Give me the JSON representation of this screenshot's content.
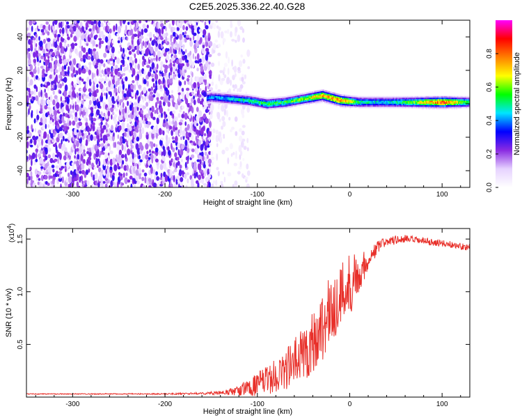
{
  "figure_title": "C2E5.2025.336.22.40.G28",
  "colors": {
    "snr_line": "#e8302a",
    "background": "#ffffff",
    "frame": "#000000",
    "colormap_stops": [
      "#ffffff",
      "#e6d2ff",
      "#8a2be2",
      "#0000ff",
      "#00e5ff",
      "#00ff00",
      "#ffff00",
      "#ff8000",
      "#ff0000",
      "#ff00ff"
    ]
  },
  "chart_data": [
    {
      "type": "heatmap",
      "title": "C2E5.2025.336.22.40.G28",
      "xlabel": "Height of straight line (km)",
      "ylabel": "Frequency (Hz)",
      "xlim": [
        -350,
        130
      ],
      "ylim": [
        -50,
        50
      ],
      "xticks": [
        -300,
        -200,
        -100,
        0,
        100
      ],
      "yticks": [
        -40,
        -20,
        0,
        20,
        40
      ],
      "colorbar": {
        "label": "Normalized spectral amplitude",
        "range": [
          0,
          1
        ],
        "ticks": [
          "0.0",
          "0.2",
          "0.4",
          "0.6",
          "0.8"
        ]
      },
      "regions": [
        {
          "name": "noise",
          "x_range": [
            -350,
            -150
          ],
          "freq_range": [
            -50,
            50
          ],
          "amplitude": [
            0.05,
            0.3
          ]
        },
        {
          "name": "transition",
          "x_range": [
            -150,
            -110
          ],
          "freq_range": [
            -50,
            50
          ],
          "amplitude": [
            0.02,
            0.1
          ]
        },
        {
          "name": "signal",
          "x_range": [
            -155,
            130
          ],
          "freq_center": 1,
          "freq_halfwidth": 4,
          "amplitude": [
            0.3,
            1.0
          ]
        }
      ],
      "ridge": [
        {
          "x": -185,
          "f": 1,
          "amp": 0.35
        },
        {
          "x": -150,
          "f": 4,
          "amp": 0.4
        },
        {
          "x": -130,
          "f": 3,
          "amp": 0.45
        },
        {
          "x": -110,
          "f": 2,
          "amp": 0.5
        },
        {
          "x": -90,
          "f": 0,
          "amp": 0.55
        },
        {
          "x": -70,
          "f": 1,
          "amp": 0.55
        },
        {
          "x": -50,
          "f": 3,
          "amp": 0.6
        },
        {
          "x": -30,
          "f": 5,
          "amp": 0.75
        },
        {
          "x": -10,
          "f": 2,
          "amp": 0.8
        },
        {
          "x": 10,
          "f": 1,
          "amp": 0.5
        },
        {
          "x": 40,
          "f": 1,
          "amp": 0.45
        },
        {
          "x": 70,
          "f": 1,
          "amp": 0.6
        },
        {
          "x": 100,
          "f": 1,
          "amp": 0.85
        },
        {
          "x": 130,
          "f": 1,
          "amp": 0.5
        }
      ]
    },
    {
      "type": "line",
      "xlabel": "Height of straight line (km)",
      "ylabel": "SNR (10 * v/v)",
      "y_multiplier": "(x10^4)",
      "y_multiplier_base": "(x10",
      "y_multiplier_exp": "4",
      "y_multiplier_close": ")",
      "xlim": [
        -350,
        130
      ],
      "ylim": [
        0,
        1.6
      ],
      "xticks": [
        -300,
        -200,
        -100,
        0,
        100
      ],
      "yticks": [
        0.5,
        1.0,
        1.5
      ],
      "yticklabels": [
        "0.5",
        "1.0",
        "1.5"
      ],
      "series": [
        {
          "name": "SNR",
          "x": [
            -350,
            -300,
            -250,
            -200,
            -160,
            -140,
            -120,
            -100,
            -80,
            -60,
            -40,
            -20,
            0,
            10,
            20,
            30,
            40,
            60,
            80,
            100,
            130
          ],
          "y": [
            0.03,
            0.03,
            0.03,
            0.03,
            0.035,
            0.04,
            0.06,
            0.12,
            0.2,
            0.32,
            0.52,
            0.82,
            1.08,
            1.18,
            1.3,
            1.42,
            1.48,
            1.5,
            1.48,
            1.46,
            1.42
          ],
          "noise": [
            0.003,
            0.003,
            0.003,
            0.004,
            0.006,
            0.012,
            0.03,
            0.07,
            0.1,
            0.15,
            0.2,
            0.22,
            0.2,
            0.12,
            0.06,
            0.04,
            0.03,
            0.025,
            0.02,
            0.02,
            0.02
          ]
        }
      ]
    }
  ]
}
